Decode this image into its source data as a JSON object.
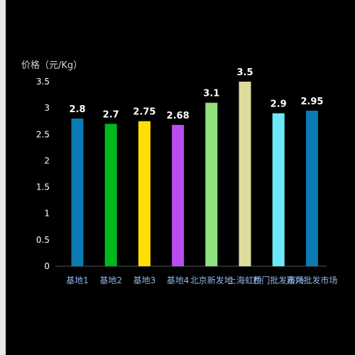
{
  "chart_data": {
    "type": "bar",
    "ylabel": "价格（元/Kg）",
    "categories": [
      "基地1",
      "基地2",
      "基地3",
      "基地4",
      "北京新发地",
      "上海虹桥",
      "西门批发市场",
      "嘉兴批发市场"
    ],
    "values": [
      2.8,
      2.7,
      2.75,
      2.68,
      3.1,
      3.5,
      2.9,
      2.95
    ],
    "value_labels": [
      "2.8",
      "2.7",
      "2.75",
      "2.68",
      "3.1",
      "3.5",
      "2.9",
      "2.95"
    ],
    "bar_colors": [
      "#0a7bb5",
      "#00b81e",
      "#ffe000",
      "#b94df0",
      "#8ee27e",
      "#dddc9a",
      "#6de8f8",
      "#0a7bb5"
    ],
    "ylim": [
      0,
      3.5
    ],
    "yticks": [
      "0",
      "0.5",
      "1",
      "1.5",
      "2",
      "2.5",
      "3",
      "3.5"
    ],
    "grid": false,
    "legend": "none"
  },
  "colors": {
    "background": "#000000",
    "axis": "#555555",
    "xtick_text": "#8fb4e8"
  }
}
